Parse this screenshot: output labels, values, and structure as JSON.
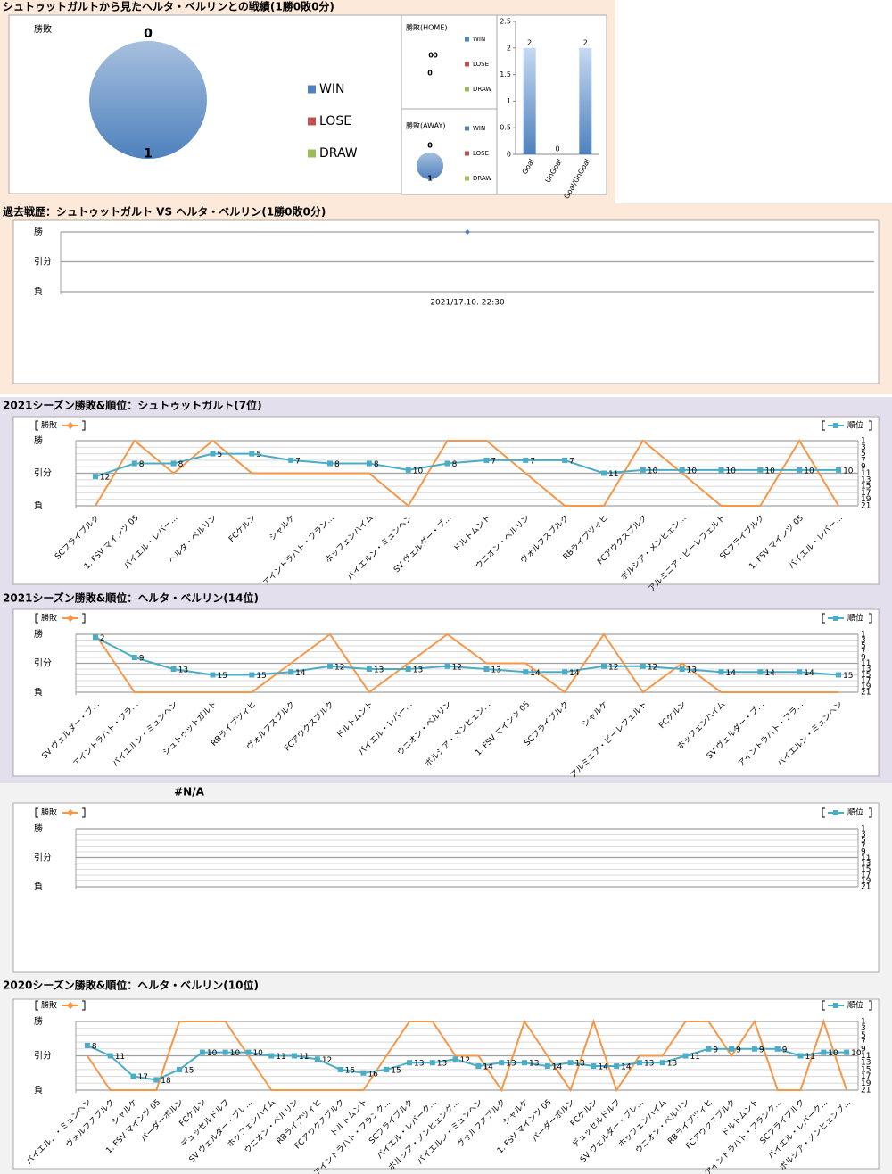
{
  "chart_data": [
    {
      "type": "pie",
      "title": "シュトゥットガルトから見たヘルタ・ベルリンとの戦績(1勝0敗0分)",
      "subtitle": "勝敗",
      "categories": [
        "WIN",
        "LOSE",
        "DRAW"
      ],
      "values": [
        1,
        0,
        0
      ],
      "colors": [
        "#4f81bd",
        "#c0504d",
        "#9bbb59"
      ]
    },
    {
      "type": "pie",
      "subtitle": "勝敗(HOME)",
      "categories": [
        "WIN",
        "LOSE",
        "DRAW"
      ],
      "values": [
        0,
        0,
        0
      ],
      "colors": [
        "#4f81bd",
        "#c0504d",
        "#9bbb59"
      ]
    },
    {
      "type": "pie",
      "subtitle": "勝敗(AWAY)",
      "categories": [
        "WIN",
        "LOSE",
        "DRAW"
      ],
      "values": [
        1,
        0,
        0
      ],
      "colors": [
        "#4f81bd",
        "#c0504d",
        "#9bbb59"
      ]
    },
    {
      "type": "bar",
      "categories": [
        "Goal",
        "UnGoal",
        "Goal/UnGoal"
      ],
      "values": [
        2,
        0,
        2
      ],
      "color": "#4f81bd",
      "ylim": [
        0,
        2.5
      ],
      "yticks": [
        0,
        0.5,
        1,
        1.5,
        2,
        2.5
      ]
    },
    {
      "type": "line",
      "title": "過去戦歴：シュトゥットガルト VS ヘルタ・ベルリン(1勝0敗0分)",
      "categories": [
        "2021/17.10. 22:30"
      ],
      "series": [
        {
          "color": "#4f81bd",
          "marker": "diamond",
          "values": [
            2
          ]
        }
      ],
      "ylim": [
        0,
        2
      ],
      "yticks": [
        {
          "value": 0,
          "label": "負"
        },
        {
          "value": 1,
          "label": "引分"
        },
        {
          "value": 2,
          "label": "勝"
        }
      ]
    },
    {
      "type": "line",
      "title": "2021シーズン勝敗&順位：シュトゥットガルト(7位)",
      "categories": [
        "SCフライブルク",
        "1. FSV マインツ 05",
        "バイエル・レバー…",
        "ヘルタ・ベルリン",
        "FCケルン",
        "シャルケ",
        "アイントラハト・フラン…",
        "ホッフェンハイム",
        "バイエルン・ミュンヘン",
        "SV ヴェルダー・ブ…",
        "ドルトムント",
        "ウニオン・ベルリン",
        "ヴォルフスブルク",
        "RBライプツィヒ",
        "FCアウクスブルク",
        "ボルシア・メンヒェン…",
        "アルミニア・ビーレフェルト",
        "SCフライブルク",
        "1. FSV マインツ 05",
        "バイエル・レバー…"
      ],
      "series": [
        {
          "name": "勝敗",
          "color": "#f79646",
          "marker": "diamond",
          "values": [
            0,
            2,
            1,
            2,
            1,
            1,
            1,
            1,
            0,
            2,
            2,
            1,
            0,
            0,
            2,
            1,
            0,
            0,
            2,
            0
          ]
        },
        {
          "name": "順位",
          "color": "#4bacc6",
          "axis": "y2",
          "marker": "square",
          "data_labels": true,
          "values": [
            12,
            8,
            8,
            5,
            5,
            7,
            8,
            8,
            10,
            8,
            7,
            7,
            7,
            11,
            10,
            10,
            10,
            10,
            10,
            10
          ]
        }
      ],
      "ylim": [
        0,
        2
      ],
      "yticks": [
        {
          "value": 0,
          "label": "負"
        },
        {
          "value": 1,
          "label": "引分"
        },
        {
          "value": 2,
          "label": "勝"
        }
      ],
      "y2lim": [
        21,
        1
      ],
      "y2ticks": [
        1,
        3,
        5,
        7,
        9,
        11,
        13,
        15,
        17,
        19,
        21
      ]
    },
    {
      "type": "line",
      "title": "2021シーズン勝敗&順位：ヘルタ・ベルリン(14位)",
      "categories": [
        "SV ヴェルダー・ブ…",
        "アイントラハト・フラ…",
        "バイエルン・ミュンヘン",
        "シュトゥットガルト",
        "RBライプツィヒ",
        "ヴォルフスブルク",
        "FCアウクスブルク",
        "ドルトムント",
        "バイエル・レバー…",
        "ウニオン・ベルリン",
        "ボルシア・メンヒェン…",
        "1. FSV マインツ 05",
        "SCフライブルク",
        "シャルケ",
        "アルミニア・ビーレフェルト",
        "FCケルン",
        "ホッフェンハイム",
        "SV ヴェルダー・ブ…",
        "アイントラハト・フラ…",
        "バイエルン・ミュンヘン"
      ],
      "series": [
        {
          "name": "勝敗",
          "color": "#f79646",
          "marker": "diamond",
          "values": [
            2,
            0,
            0,
            0,
            0,
            1,
            2,
            0,
            1,
            2,
            1,
            1,
            0,
            2,
            0,
            1,
            0,
            0,
            0,
            0
          ]
        },
        {
          "name": "順位",
          "color": "#4bacc6",
          "axis": "y2",
          "marker": "square",
          "data_labels": true,
          "values": [
            2,
            9,
            13,
            15,
            15,
            14,
            12,
            13,
            13,
            12,
            13,
            14,
            14,
            12,
            12,
            13,
            14,
            14,
            14,
            15
          ]
        }
      ],
      "ylim": [
        0,
        2
      ],
      "yticks": [
        {
          "value": 0,
          "label": "負"
        },
        {
          "value": 1,
          "label": "引分"
        },
        {
          "value": 2,
          "label": "勝"
        }
      ],
      "y2lim": [
        21,
        1
      ],
      "y2ticks": [
        1,
        3,
        5,
        7,
        9,
        11,
        13,
        15,
        17,
        19,
        21
      ]
    },
    {
      "type": "line",
      "title": "#N/A",
      "categories": [],
      "series": [
        {
          "name": "勝敗",
          "color": "#f79646",
          "marker": "diamond",
          "values": []
        },
        {
          "name": "順位",
          "color": "#4bacc6",
          "axis": "y2",
          "marker": "square",
          "data_labels": true,
          "values": []
        }
      ],
      "ylim": [
        0,
        2
      ],
      "yticks": [
        {
          "value": 0,
          "label": "負"
        },
        {
          "value": 1,
          "label": "引分"
        },
        {
          "value": 2,
          "label": "勝"
        }
      ],
      "y2lim": [
        21,
        1
      ],
      "y2ticks": [
        1,
        3,
        5,
        7,
        9,
        11,
        13,
        15,
        17,
        19,
        21
      ]
    },
    {
      "type": "line",
      "title": "2020シーズン勝敗&順位：ヘルタ・ベルリン(10位)",
      "categories": [
        "バイエルン・ミュンヘン",
        "ヴォルフスブルク",
        "シャルケ",
        "1. FSV マインツ 05",
        "パーダーボルン",
        "FCケルン",
        "デュッセルドルフ",
        "SV ヴェルダー・ブレ…",
        "ホッフェンハイム",
        "ウニオン・ベルリン",
        "RBライプツィヒ",
        "FCアウクスブルク",
        "ドルトムント",
        "アイントラハト・フランク…",
        "SCフライブルク",
        "バイエル・レバーク…",
        "ボルシア・メンヒェング…",
        "バイエルン・ミュンヘン",
        "ヴォルフスブルク",
        "シャルケ",
        "1. FSV マインツ 05",
        "パーダーボルン",
        "FCケルン",
        "デュッセルドルフ",
        "SV ヴェルダー・ブレ…",
        "ホッフェンハイム",
        "ウニオン・ベルリン",
        "RBライプツィヒ",
        "FCアウクスブルク",
        "ドルトムント",
        "アイントラハト・フランク…",
        "SCフライブルク",
        "バイエル・レバーク…",
        "ボルシア・メンヒェング…"
      ],
      "series": [
        {
          "name": "勝敗",
          "color": "#f79646",
          "marker": "diamond",
          "values": [
            1,
            0,
            0,
            0,
            2,
            2,
            2,
            1,
            0,
            0,
            0,
            0,
            0,
            1,
            2,
            2,
            1,
            1,
            0,
            2,
            1,
            0,
            2,
            0,
            1,
            1,
            2,
            2,
            1,
            2,
            0,
            0,
            2,
            0
          ]
        },
        {
          "name": "順位",
          "color": "#4bacc6",
          "axis": "y2",
          "marker": "square",
          "data_labels": true,
          "values": [
            8,
            11,
            17,
            18,
            15,
            10,
            10,
            10,
            11,
            11,
            12,
            15,
            16,
            15,
            13,
            13,
            12,
            14,
            13,
            13,
            14,
            13,
            14,
            14,
            13,
            13,
            11,
            9,
            9,
            9,
            9,
            11,
            10,
            10
          ]
        }
      ],
      "ylim": [
        0,
        2
      ],
      "yticks": [
        {
          "value": 0,
          "label": "負"
        },
        {
          "value": 1,
          "label": "引分"
        },
        {
          "value": 2,
          "label": "勝"
        }
      ],
      "y2lim": [
        21,
        1
      ],
      "y2ticks": [
        1,
        3,
        5,
        7,
        9,
        11,
        13,
        15,
        17,
        19,
        21
      ]
    }
  ]
}
